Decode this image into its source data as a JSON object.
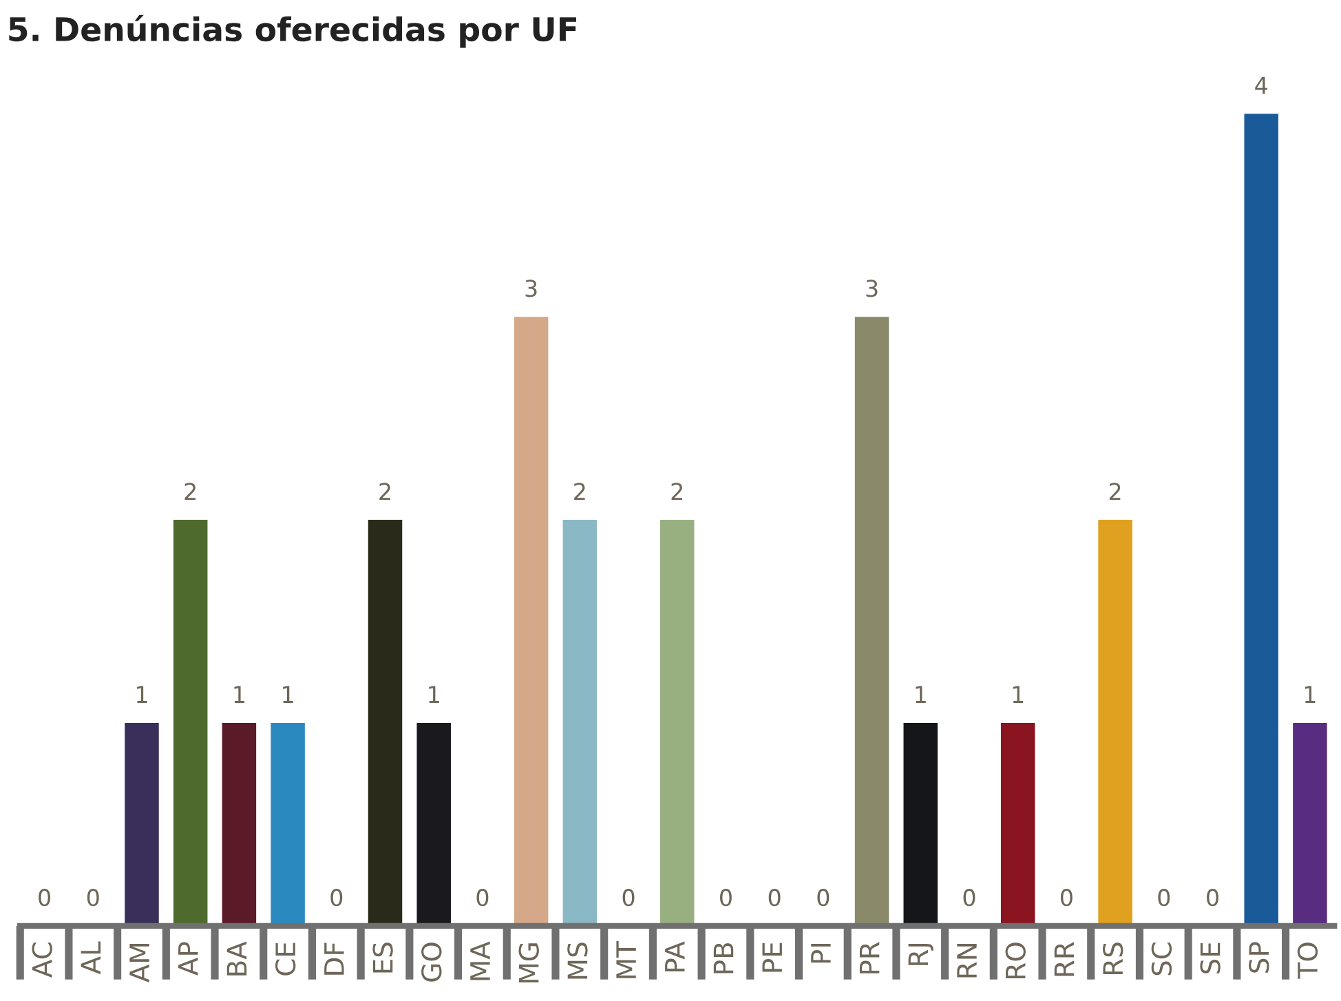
{
  "chart_data": {
    "type": "bar",
    "title": "5. Denúncias oferecidas por UF",
    "categories": [
      "AC",
      "AL",
      "AM",
      "AP",
      "BA",
      "CE",
      "DF",
      "ES",
      "GO",
      "MA",
      "MG",
      "MS",
      "MT",
      "PA",
      "PB",
      "PE",
      "PI",
      "PR",
      "RJ",
      "RN",
      "RO",
      "RR",
      "RS",
      "SC",
      "SE",
      "SP",
      "TO"
    ],
    "values": [
      0,
      0,
      1,
      2,
      1,
      1,
      0,
      2,
      1,
      0,
      3,
      2,
      0,
      2,
      0,
      0,
      0,
      3,
      1,
      0,
      1,
      0,
      2,
      0,
      0,
      4,
      1
    ],
    "colors": [
      "#c0561e",
      "#236070",
      "#3a2e5a",
      "#4e6a2c",
      "#5a1a28",
      "#2a8ac0",
      "#0a4a80",
      "#2a2a1a",
      "#1a1a1e",
      "#808488",
      "#d4a888",
      "#8ab8c4",
      "#a898c0",
      "#98b080",
      "#c09098",
      "#6a98a8",
      "#5a84b8",
      "#8a8a6a",
      "#14161a",
      "#9a9c9e",
      "#8a1420",
      "#c01a2a",
      "#e0a020",
      "#c0c830",
      "#4a8a30",
      "#1a5a98",
      "#582c80"
    ],
    "data_labels": true,
    "grid": false,
    "legend": false
  }
}
